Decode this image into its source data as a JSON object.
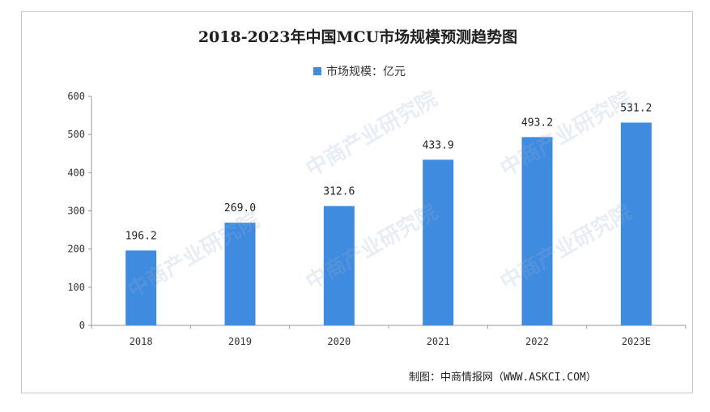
{
  "chart_data": {
    "type": "bar",
    "title": "2018-2023年中国MCU市场规模预测趋势图",
    "legend": "市场规模：亿元",
    "categories": [
      "2018",
      "2019",
      "2020",
      "2021",
      "2022",
      "2023E"
    ],
    "values": [
      196.2,
      269.0,
      312.6,
      433.9,
      493.2,
      531.2
    ],
    "value_labels": [
      "196.2",
      "269.0",
      "312.6",
      "433.9",
      "493.2",
      "531.2"
    ],
    "ylim": [
      0,
      600
    ],
    "yticks": [
      0,
      100,
      200,
      300,
      400,
      500,
      600
    ],
    "grid": false,
    "legend_position": "top-center",
    "bar_color": "#3f8be0"
  },
  "source": "制图：中商情报网（WWW.ASKCI.COM）",
  "watermark": "中商产业研究院"
}
